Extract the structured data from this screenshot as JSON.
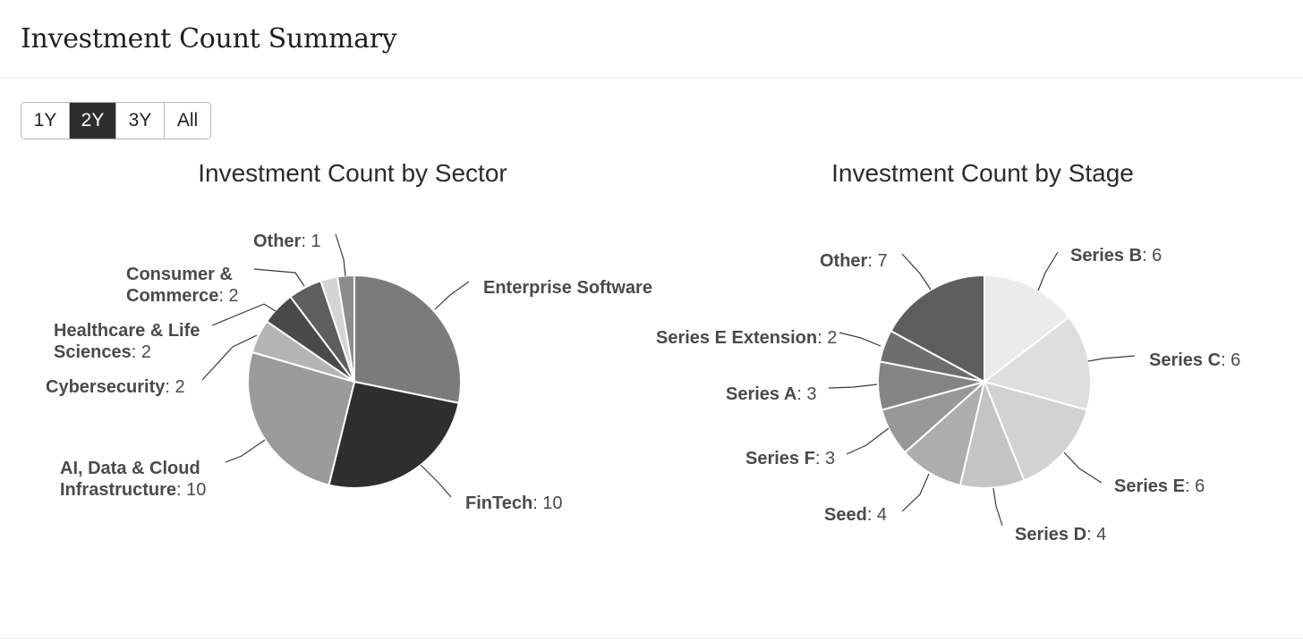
{
  "page": {
    "title": "Investment Count Summary"
  },
  "range_selector": {
    "options": [
      "1Y",
      "2Y",
      "3Y",
      "All"
    ],
    "selected": "2Y"
  },
  "chart_data": [
    {
      "type": "pie",
      "title": "Investment Count by Sector",
      "start_angle_deg": 0,
      "direction": "clockwise",
      "slices": [
        {
          "name": "Enterprise Software",
          "value": 11,
          "color": "#7b7b7b",
          "show_value": false
        },
        {
          "name": "FinTech",
          "value": 10,
          "color": "#2e2e2e",
          "show_value": true
        },
        {
          "name": "AI, Data & Cloud Infrastructure",
          "value": 10,
          "color": "#9b9b9b",
          "show_value": true
        },
        {
          "name": "Cybersecurity",
          "value": 2,
          "color": "#b4b4b4",
          "show_value": true
        },
        {
          "name": "Healthcare & Life Sciences",
          "value": 2,
          "color": "#4a4a4a",
          "show_value": true
        },
        {
          "name": "Consumer & Commerce",
          "value": 2,
          "color": "#5e5e5e",
          "show_value": true
        },
        {
          "name": "",
          "value": 1,
          "color": "#d4d4d4",
          "show_value": false
        },
        {
          "name": "Other",
          "value": 1,
          "color": "#8c8c8c",
          "show_value": true
        }
      ]
    },
    {
      "type": "pie",
      "title": "Investment Count by Stage",
      "start_angle_deg": 0,
      "direction": "clockwise",
      "slices": [
        {
          "name": "Series B",
          "value": 6,
          "color": "#ebebeb",
          "show_value": true
        },
        {
          "name": "Series C",
          "value": 6,
          "color": "#dedede",
          "show_value": true
        },
        {
          "name": "Series E",
          "value": 6,
          "color": "#d2d2d2",
          "show_value": true
        },
        {
          "name": "Series D",
          "value": 4,
          "color": "#c4c4c4",
          "show_value": true
        },
        {
          "name": "Seed",
          "value": 4,
          "color": "#adadad",
          "show_value": true
        },
        {
          "name": "Series F",
          "value": 3,
          "color": "#989898",
          "show_value": true
        },
        {
          "name": "Series A",
          "value": 3,
          "color": "#848484",
          "show_value": true
        },
        {
          "name": "Series E Extension",
          "value": 2,
          "color": "#6e6e6e",
          "show_value": true
        },
        {
          "name": "Other",
          "value": 7,
          "color": "#5d5d5d",
          "show_value": true
        }
      ]
    }
  ]
}
